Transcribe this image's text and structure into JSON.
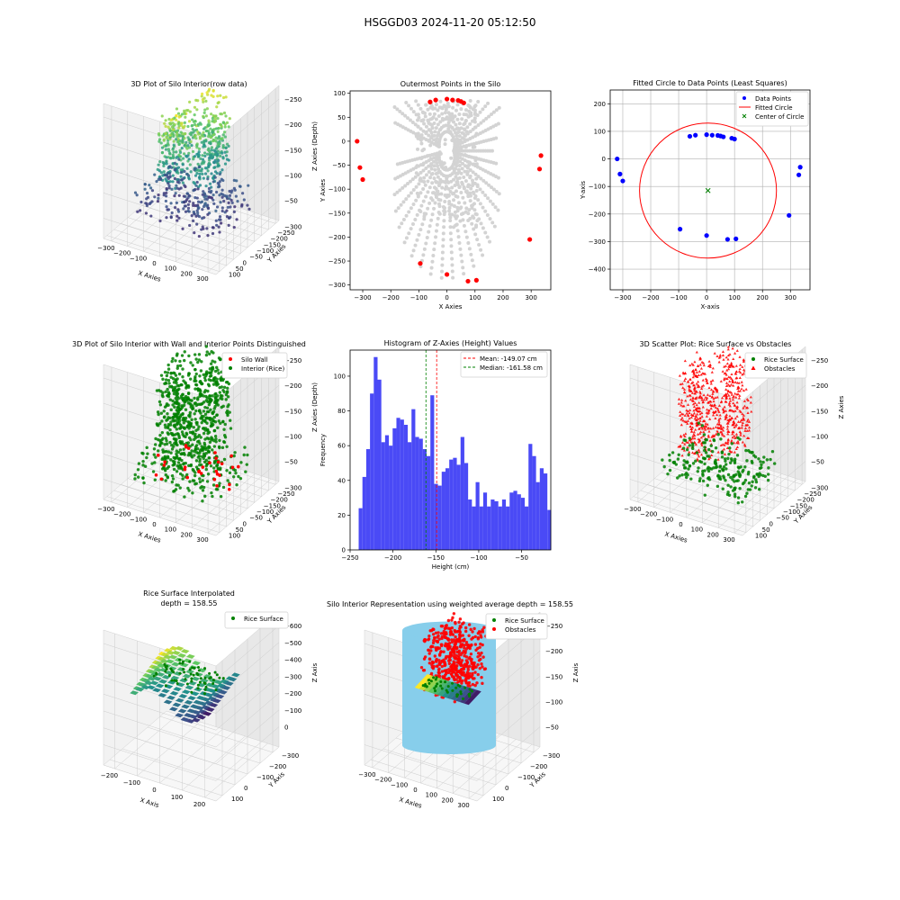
{
  "suptitle": "HSGGD03 2024-11-20 05:12:50",
  "colors": {
    "wall": "#ff0000",
    "rice": "#008000",
    "gray": "#d3d3d3",
    "blue": "#0000ff",
    "hist": "#4a4af6",
    "silo": "#87ceeb",
    "mean": "#ff0000",
    "median": "#008000"
  },
  "chart_data": [
    {
      "id": "p1",
      "type": "scatter3d",
      "title": "3D Plot of Silo Interior(row data)",
      "xlabel": "X Axies",
      "ylabel": "Y Axies",
      "zlabel": "Z Axies (Depth)",
      "xticks": [
        "−300",
        "−200",
        "−100",
        "0",
        "100",
        "200",
        "300"
      ],
      "yticks": [
        "100",
        "50",
        "0",
        "−50",
        "−100",
        "−150",
        "−200",
        "−250",
        "−300"
      ],
      "zticks": [
        "−50",
        "−100",
        "−150",
        "−200",
        "−250"
      ],
      "colormap": "viridis"
    },
    {
      "id": "p2",
      "type": "scatter",
      "title": "Outermost Points in the Silo",
      "xlabel": "X Axies",
      "ylabel": "Y Axies",
      "xlim": [
        -345,
        370
      ],
      "ylim": [
        -310,
        105
      ],
      "xticks": [
        -300,
        -200,
        -100,
        0,
        100,
        200,
        300
      ],
      "yticks": [
        100,
        50,
        0,
        -50,
        -100,
        -150,
        -200,
        -250,
        -300
      ],
      "series": [
        {
          "name": "",
          "color": "#d3d3d3",
          "description": "all points"
        },
        {
          "name": "",
          "color": "#ff0000",
          "x": [
            -320,
            -310,
            -300,
            -60,
            -40,
            0,
            20,
            40,
            50,
            60,
            335,
            330,
            295,
            -95,
            0,
            75,
            105
          ],
          "y": [
            0,
            -55,
            -80,
            82,
            86,
            88,
            86,
            85,
            83,
            80,
            -30,
            -58,
            -205,
            -255,
            -278,
            -292,
            -290
          ]
        }
      ]
    },
    {
      "id": "p3",
      "type": "scatter",
      "title": "Fitted Circle to Data Points (Least Squares)",
      "xlabel": "X-axis",
      "ylabel": "Y-axis",
      "xlim": [
        -345,
        370
      ],
      "ylim": [
        -475,
        250
      ],
      "xticks": [
        -300,
        -200,
        -100,
        0,
        100,
        200,
        300
      ],
      "yticks": [
        200,
        100,
        0,
        -100,
        -200,
        -300,
        -400
      ],
      "grid": true,
      "legend": "top-right",
      "legend_entries": [
        "Data Points",
        "Fitted Circle",
        "Center of Circle"
      ],
      "data_points": {
        "x": [
          -320,
          -310,
          -300,
          -60,
          -40,
          0,
          20,
          40,
          50,
          60,
          90,
          100,
          335,
          330,
          295,
          -95,
          0,
          75,
          105
        ],
        "y": [
          0,
          -55,
          -80,
          82,
          86,
          88,
          86,
          85,
          83,
          80,
          75,
          72,
          -30,
          -58,
          -205,
          -255,
          -278,
          -292,
          -290
        ]
      },
      "circle": {
        "cx": 5,
        "cy": -115,
        "r": 245
      },
      "center": {
        "x": 5,
        "y": -115
      }
    },
    {
      "id": "p4",
      "type": "scatter3d",
      "title": "3D Plot of Silo Interior with Wall and Interior Points Distinguished",
      "xlabel": "X Axies",
      "ylabel": "Y Axies",
      "zlabel": "Z Axies (Depth)",
      "xticks": [
        "−300",
        "−200",
        "−100",
        "0",
        "100",
        "200",
        "300"
      ],
      "yticks": [
        "100",
        "50",
        "0",
        "−50",
        "−100",
        "−150",
        "−200",
        "−250",
        "−300"
      ],
      "zticks": [
        "−50",
        "−100",
        "−150",
        "−200",
        "−250"
      ],
      "legend_entries": [
        "Silo Wall",
        "Interior (Rice)"
      ]
    },
    {
      "id": "p5",
      "type": "bar",
      "title": "Histogram of Z-Axies (Height) Values",
      "xlabel": "Height (cm)",
      "ylabel": "Frequency",
      "xlim": [
        -250,
        -16
      ],
      "ylim": [
        0,
        115
      ],
      "xticks": [
        -250,
        -200,
        -150,
        -100,
        -50
      ],
      "yticks": [
        0,
        20,
        40,
        60,
        80,
        100
      ],
      "bin_start": -240,
      "bin_width": 4.4,
      "values": [
        24,
        42,
        58,
        90,
        111,
        98,
        62,
        66,
        60,
        70,
        76,
        75,
        72,
        62,
        81,
        65,
        64,
        58,
        54,
        89,
        38,
        37,
        45,
        47,
        52,
        53,
        49,
        65,
        50,
        29,
        25,
        39,
        25,
        33,
        25,
        29,
        28,
        25,
        29,
        25,
        33,
        34,
        32,
        30,
        25,
        61,
        54,
        39,
        47,
        44,
        23
      ],
      "mean": -149.07,
      "median": -161.58,
      "legend_entries": [
        "Mean: -149.07 cm",
        "Median: -161.58 cm"
      ]
    },
    {
      "id": "p6",
      "type": "scatter3d",
      "title": "3D Scatter Plot: Rice Surface vs Obstacles",
      "xlabel": "X Axies",
      "ylabel": "Y Axies",
      "zlabel": "Z Axies",
      "xticks": [
        "−300",
        "−200",
        "−100",
        "0",
        "100",
        "200",
        "300"
      ],
      "yticks": [
        "100",
        "50",
        "0",
        "−50",
        "−100",
        "−150",
        "−200",
        "−250",
        "−300"
      ],
      "zticks": [
        "−50",
        "−100",
        "−150",
        "−200",
        "−250"
      ],
      "legend_entries": [
        "Rice Surface",
        "Obstacles"
      ]
    },
    {
      "id": "p7",
      "type": "surface3d",
      "title": "Rice Surface Interpolated",
      "subtitle": "depth = 158.55",
      "xlabel": "X Axis",
      "ylabel": "Y Axis",
      "zlabel": "Z Axis",
      "xticks": [
        "−200",
        "−100",
        "0",
        "100",
        "200"
      ],
      "yticks": [
        "100",
        "0",
        "−100",
        "−200",
        "−300"
      ],
      "zticks": [
        "0",
        "−100",
        "−200",
        "−300",
        "−400",
        "−500",
        "−600"
      ],
      "legend_entries": [
        "Rice Surface"
      ]
    },
    {
      "id": "p8",
      "type": "scatter3d",
      "title": "Silo Interior Representation using weighted average depth = 158.55",
      "xlabel": "X Axies",
      "ylabel": "Y Axis",
      "zlabel": "Z Axis",
      "xticks": [
        "−300",
        "−200",
        "−100",
        "0",
        "100",
        "200",
        "300"
      ],
      "yticks": [
        "100",
        "0",
        "−100",
        "−200",
        "−300"
      ],
      "zticks": [
        "−50",
        "−100",
        "−150",
        "−200",
        "−250"
      ],
      "legend_entries": [
        "Rice Surface",
        "Obstacles"
      ]
    }
  ]
}
